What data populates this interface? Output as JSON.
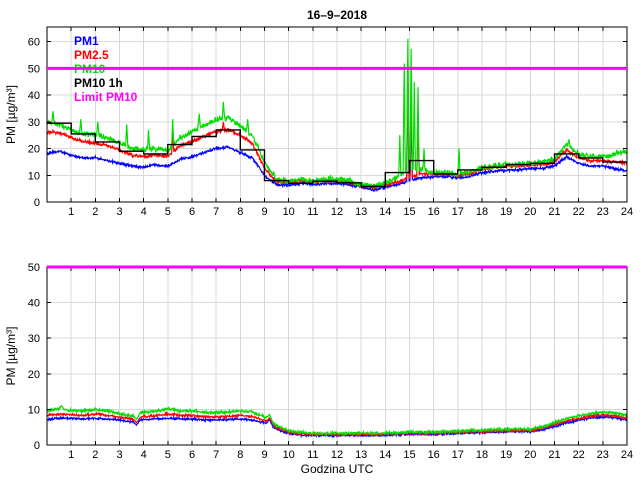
{
  "chart_data": {
    "type": "line",
    "title": "16–9–2018",
    "legend": {
      "position": "top-left-inside",
      "entries": [
        {
          "label": "PM1",
          "color": "#0000ff"
        },
        {
          "label": "PM2.5",
          "color": "#ff0000"
        },
        {
          "label": "PM10",
          "color": "#00dd00"
        },
        {
          "label": "PM10 1h",
          "color": "#000000"
        },
        {
          "label": "Limit PM10",
          "color": "#ff00ff"
        }
      ]
    },
    "charts": [
      {
        "id": "top",
        "xlim": [
          0,
          24
        ],
        "ylim": [
          0,
          65.5
        ],
        "xticks": [
          1,
          2,
          3,
          4,
          5,
          6,
          7,
          8,
          9,
          10,
          11,
          12,
          13,
          14,
          15,
          16,
          17,
          18,
          19,
          20,
          21,
          22,
          23,
          24
        ],
        "yticks": [
          0,
          10,
          20,
          30,
          40,
          50,
          60
        ],
        "xlabel": "",
        "ylabel": "PM [µg/m³]",
        "grid": true,
        "series": [
          {
            "name": "PM1",
            "type": "noisy-line",
            "color": "#0000ff",
            "width": 1.2,
            "noise": 0.6,
            "anchors": {
              "t0": 0,
              "dt": 0.5,
              "values": [
                18,
                19,
                17.5,
                16.5,
                16.5,
                15.5,
                14.5,
                13.5,
                13,
                14,
                13.5,
                16,
                17,
                18.5,
                20,
                20.5,
                18.5,
                16.5,
                10,
                6.5,
                6.2,
                7,
                6.5,
                7,
                7,
                6.5,
                5.5,
                4.5,
                5.5,
                6.5,
                8,
                9,
                9.5,
                9.5,
                9,
                9.5,
                11,
                11.5,
                12,
                12,
                12.5,
                12.5,
                13.5,
                17,
                14.5,
                13.5,
                13.5,
                12.5,
                11.5
              ]
            },
            "spikes": [
              [
                14.93,
                50
              ],
              [
                15.07,
                36
              ]
            ]
          },
          {
            "name": "PM2.5",
            "type": "noisy-line",
            "color": "#ff0000",
            "width": 1.2,
            "noise": 0.8,
            "anchors": {
              "t0": 0,
              "dt": 0.5,
              "values": [
                26,
                26,
                24,
                22.5,
                22,
                21,
                19.5,
                17.5,
                17,
                17.5,
                17,
                21,
                22.5,
                24.5,
                26.5,
                27,
                25,
                22,
                12.5,
                7.5,
                7.5,
                8,
                7.5,
                8,
                8,
                7.5,
                6,
                5.5,
                6.5,
                7.5,
                9,
                10.5,
                10.5,
                10.5,
                10,
                10.5,
                12.5,
                13,
                13.5,
                13.5,
                14,
                14,
                15,
                19.5,
                16.5,
                15.5,
                15.5,
                15,
                14.5
              ]
            },
            "spikes": [
              [
                5.2,
                25
              ],
              [
                7.3,
                30
              ],
              [
                14.93,
                57
              ],
              [
                15.07,
                48
              ],
              [
                15.35,
                33
              ]
            ]
          },
          {
            "name": "PM10",
            "type": "noisy-line",
            "color": "#00dd00",
            "width": 1.2,
            "noise": 1.3,
            "anchors": {
              "t0": 0,
              "dt": 0.5,
              "values": [
                30,
                29,
                27,
                25.5,
                25,
                24,
                22,
                20,
                19.5,
                20,
                19,
                24,
                26.5,
                28.5,
                31,
                31.5,
                28.5,
                25,
                15,
                8.5,
                7.8,
                8.5,
                8,
                8.5,
                8.5,
                8,
                6.5,
                6,
                7,
                9,
                12,
                12,
                11,
                11,
                10.5,
                11,
                13,
                13.5,
                14,
                14,
                14.5,
                15,
                16,
                21.5,
                18,
                17,
                17,
                18,
                19
              ]
            },
            "spikes": [
              [
                0.25,
                34
              ],
              [
                1.4,
                31
              ],
              [
                2.1,
                30
              ],
              [
                3.3,
                29
              ],
              [
                4.2,
                27
              ],
              [
                5.2,
                31
              ],
              [
                6.3,
                33
              ],
              [
                7.3,
                37.5
              ],
              [
                8.3,
                31
              ],
              [
                14.6,
                25
              ],
              [
                14.78,
                55
              ],
              [
                14.93,
                65
              ],
              [
                15.07,
                61
              ],
              [
                15.2,
                45
              ],
              [
                15.35,
                43
              ],
              [
                15.6,
                20
              ],
              [
                17.05,
                20
              ],
              [
                21.6,
                23.5
              ]
            ]
          },
          {
            "name": "PM10 1h",
            "type": "stairs",
            "color": "#000000",
            "width": 1.4,
            "hourly": [
              29.5,
              25.5,
              22.5,
              19,
              18,
              21.5,
              24.5,
              27,
              19.5,
              8,
              7,
              7.8,
              7.2,
              5.8,
              11,
              15.5,
              10.5,
              12,
              13,
              14,
              14.5,
              18,
              16.5,
              15
            ]
          },
          {
            "name": "Limit PM10",
            "type": "hline",
            "color": "#ff00ff",
            "width": 3,
            "value": 50
          }
        ]
      },
      {
        "id": "bottom",
        "xlim": [
          0,
          24
        ],
        "ylim": [
          0,
          50
        ],
        "xticks": [
          1,
          2,
          3,
          4,
          5,
          6,
          7,
          8,
          9,
          10,
          11,
          12,
          13,
          14,
          15,
          16,
          17,
          18,
          19,
          20,
          21,
          22,
          23,
          24
        ],
        "yticks": [
          0,
          10,
          20,
          30,
          40,
          50
        ],
        "xlabel": "Godzina UTC",
        "ylabel": "PM [µg/m³]",
        "grid": true,
        "series": [
          {
            "name": "PM1",
            "type": "noisy-line",
            "color": "#0000ff",
            "width": 1.2,
            "noise": 0.35,
            "anchors": {
              "t0": 0,
              "dt": 0.5,
              "values": [
                7.2,
                7.5,
                7.5,
                7.3,
                7.5,
                7.3,
                7,
                6.5,
                7.2,
                7.3,
                7.5,
                7.3,
                7.3,
                7,
                7,
                7.1,
                7.3,
                7,
                6.2,
                4.5,
                3.2,
                2.8,
                2.7,
                2.7,
                2.7,
                2.7,
                2.7,
                2.7,
                2.8,
                2.9,
                3,
                3,
                3,
                3.1,
                3.2,
                3.4,
                3.5,
                3.6,
                3.8,
                3.8,
                3.7,
                4.3,
                5.2,
                6.2,
                7,
                7.6,
                7.9,
                7.7,
                6.9
              ]
            },
            "spikes": [
              [
                3.7,
                5.6,
                0.15
              ],
              [
                9.2,
                7.2,
                0.15
              ]
            ]
          },
          {
            "name": "PM2.5",
            "type": "noisy-line",
            "color": "#ff0000",
            "width": 1.2,
            "noise": 0.4,
            "anchors": {
              "t0": 0,
              "dt": 0.5,
              "values": [
                8.3,
                8.7,
                8.5,
                8.3,
                8.7,
                8.4,
                7.8,
                7.3,
                8,
                8.2,
                8.7,
                8.3,
                8.3,
                8,
                7.9,
                8,
                8.3,
                8,
                6.9,
                5,
                3.6,
                3.1,
                3,
                3,
                3,
                3,
                3,
                3,
                3.1,
                3.2,
                3.3,
                3.3,
                3.3,
                3.4,
                3.5,
                3.7,
                3.8,
                3.9,
                4.1,
                4.1,
                4,
                4.7,
                5.7,
                6.8,
                7.5,
                8.1,
                8.4,
                8.2,
                7.4
              ]
            },
            "spikes": [
              [
                3.7,
                6.3,
                0.15
              ],
              [
                9.2,
                7.6,
                0.15
              ]
            ]
          },
          {
            "name": "PM10",
            "type": "noisy-line",
            "color": "#00dd00",
            "width": 1.2,
            "noise": 0.5,
            "anchors": {
              "t0": 0,
              "dt": 0.5,
              "values": [
                9.5,
                10.3,
                9.7,
                9.5,
                10,
                9.6,
                8.8,
                8.2,
                9.2,
                9.5,
                10.2,
                9.5,
                9.6,
                9.2,
                9.1,
                9.2,
                9.6,
                9.3,
                7.8,
                5.5,
                4,
                3.5,
                3.3,
                3.3,
                3.3,
                3.3,
                3.3,
                3.3,
                3.4,
                3.5,
                3.6,
                3.6,
                3.6,
                3.7,
                3.9,
                4.1,
                4.2,
                4.3,
                4.5,
                4.5,
                4.4,
                5.2,
                6.3,
                7.4,
                8.2,
                8.8,
                9.2,
                9,
                8.2
              ]
            },
            "spikes": [
              [
                0.6,
                11,
                0.1
              ],
              [
                3.7,
                7.2,
                0.15
              ],
              [
                9.2,
                8.6,
                0.15
              ]
            ]
          },
          {
            "name": "Limit PM10",
            "type": "hline",
            "color": "#ff00ff",
            "width": 3,
            "value": 50
          }
        ]
      }
    ]
  }
}
